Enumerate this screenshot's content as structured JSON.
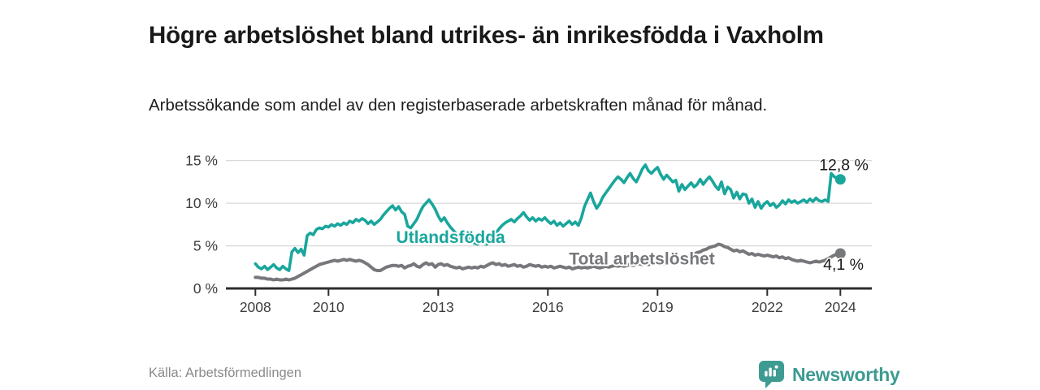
{
  "header": {
    "title": "Högre arbetslöshet bland utrikes- än inrikesfödda i Vaxholm",
    "subtitle": "Arbetssökande som andel av den registerbaserade arbetskraften månad för månad."
  },
  "footer": {
    "source": "Källa: Arbetsförmedlingen",
    "brand": "Newsworthy"
  },
  "colors": {
    "teal_series": "#19a69c",
    "gray_series": "#77787b",
    "grid": "#d9d9d9",
    "axis": "#2e2e2e",
    "axis_text": "#3c3c3c",
    "annotation_text": "#1a1a1a",
    "logo_teal": "#3d9b91",
    "source_text": "#8a8a8a"
  },
  "chart_data": {
    "type": "line",
    "title": "Högre arbetslöshet bland utrikes- än inrikesfödda i Vaxholm",
    "subtitle": "Arbetssökande som andel av den registerbaserade arbetskraften månad för månad.",
    "x_unit": "year-month, monthly from Jan 2008 to Jan 2024",
    "xlim": [
      2007.2,
      2024.9
    ],
    "ylim": [
      0,
      15.5
    ],
    "grid": "horizontal-only",
    "legend_position": "inline-labels-on-lines",
    "x_ticks": [
      {
        "year": 2008,
        "label": "2008"
      },
      {
        "year": 2010,
        "label": "2010"
      },
      {
        "year": 2013,
        "label": "2013"
      },
      {
        "year": 2016,
        "label": "2016"
      },
      {
        "year": 2019,
        "label": "2019"
      },
      {
        "year": 2022,
        "label": "2022"
      },
      {
        "year": 2024,
        "label": "2024"
      }
    ],
    "y_ticks": [
      {
        "value": 0,
        "label": "0 %"
      },
      {
        "value": 5,
        "label": "5 %"
      },
      {
        "value": 10,
        "label": "10 %"
      },
      {
        "value": 15,
        "label": "15 %"
      }
    ],
    "series": [
      {
        "id": "total",
        "name": "Total arbetslöshet",
        "color": "#77787b",
        "width": 4,
        "end_label": "4,1 %",
        "label_pos": {
          "year": 2016.58,
          "value": 2.82
        },
        "end_label_pos": {
          "year": 2023.53,
          "value": 2.18
        },
        "start": "2008-01",
        "values": [
          1.3,
          1.3,
          1.2,
          1.2,
          1.1,
          1.1,
          1.0,
          1.1,
          1.0,
          1.0,
          1.1,
          1.0,
          1.1,
          1.2,
          1.4,
          1.6,
          1.8,
          2.0,
          2.2,
          2.4,
          2.6,
          2.8,
          2.9,
          3.0,
          3.1,
          3.2,
          3.3,
          3.2,
          3.3,
          3.4,
          3.3,
          3.4,
          3.3,
          3.2,
          3.3,
          3.2,
          3.0,
          2.8,
          2.5,
          2.2,
          2.1,
          2.1,
          2.3,
          2.5,
          2.6,
          2.7,
          2.7,
          2.6,
          2.7,
          2.4,
          2.6,
          2.7,
          2.9,
          2.6,
          2.5,
          2.8,
          3.0,
          2.8,
          2.9,
          2.5,
          2.8,
          2.9,
          2.7,
          2.8,
          2.6,
          2.5,
          2.4,
          2.5,
          2.3,
          2.4,
          2.5,
          2.4,
          2.5,
          2.4,
          2.6,
          2.5,
          2.7,
          2.9,
          3.0,
          2.8,
          2.9,
          2.7,
          2.8,
          2.6,
          2.7,
          2.8,
          2.6,
          2.7,
          2.5,
          2.6,
          2.8,
          2.7,
          2.6,
          2.7,
          2.5,
          2.6,
          2.5,
          2.6,
          2.4,
          2.5,
          2.6,
          2.5,
          2.4,
          2.5,
          2.3,
          2.4,
          2.5,
          2.4,
          2.5,
          2.4,
          2.5,
          2.6,
          2.5,
          2.4,
          2.5,
          2.6,
          2.5,
          2.6,
          2.7,
          2.6,
          2.7,
          2.6,
          2.7,
          2.8,
          2.7,
          2.8,
          2.9,
          2.8,
          2.9,
          2.8,
          2.9,
          3.0,
          2.9,
          3.0,
          2.9,
          3.0,
          3.1,
          3.0,
          3.1,
          3.2,
          3.3,
          3.5,
          3.7,
          3.9,
          4.0,
          4.2,
          4.3,
          4.5,
          4.6,
          4.8,
          4.9,
          5.0,
          5.2,
          5.1,
          4.9,
          4.8,
          4.6,
          4.4,
          4.5,
          4.3,
          4.4,
          4.2,
          4.0,
          4.1,
          3.9,
          4.0,
          3.9,
          3.8,
          3.9,
          3.8,
          3.7,
          3.8,
          3.6,
          3.7,
          3.5,
          3.6,
          3.4,
          3.3,
          3.2,
          3.3,
          3.2,
          3.1,
          3.0,
          3.1,
          3.2,
          3.1,
          3.2,
          3.3,
          3.5,
          3.7,
          3.9,
          4.0,
          4.1
        ]
      },
      {
        "id": "utlandsfodda",
        "name": "Utlandsfödda",
        "color": "#19a69c",
        "width": 3.6,
        "end_label": "12,8 %",
        "label_pos": {
          "year": 2011.85,
          "value": 5.35
        },
        "end_label_pos": {
          "year": 2023.42,
          "value": 13.85
        },
        "start": "2008-01",
        "values": [
          2.9,
          2.5,
          2.3,
          2.6,
          2.2,
          2.5,
          2.8,
          2.4,
          2.2,
          2.6,
          2.3,
          2.1,
          4.3,
          4.7,
          4.2,
          4.6,
          3.9,
          6.2,
          6.5,
          6.3,
          6.9,
          7.1,
          7.0,
          7.3,
          7.2,
          7.5,
          7.3,
          7.6,
          7.4,
          7.7,
          7.5,
          7.9,
          7.7,
          8.1,
          7.9,
          8.2,
          8.0,
          7.6,
          7.9,
          7.5,
          7.8,
          8.1,
          8.6,
          9.0,
          9.4,
          9.7,
          9.2,
          9.6,
          9.0,
          8.7,
          7.3,
          7.1,
          7.6,
          8.1,
          8.9,
          9.6,
          10.0,
          10.4,
          9.9,
          9.3,
          8.5,
          7.9,
          8.3,
          7.7,
          7.2,
          6.8,
          6.4,
          6.1,
          5.8,
          5.6,
          5.9,
          5.5,
          5.3,
          5.2,
          5.5,
          5.3,
          5.2,
          5.6,
          6.0,
          6.5,
          7.0,
          7.4,
          7.7,
          7.9,
          8.1,
          7.8,
          8.2,
          8.5,
          8.9,
          8.4,
          8.0,
          8.3,
          7.9,
          8.2,
          8.0,
          8.3,
          7.9,
          7.6,
          7.9,
          7.4,
          7.7,
          7.3,
          7.6,
          7.9,
          7.5,
          7.8,
          7.4,
          8.3,
          9.6,
          10.4,
          11.2,
          10.2,
          9.4,
          9.9,
          10.7,
          11.2,
          11.7,
          12.2,
          12.7,
          13.1,
          12.8,
          12.4,
          13.0,
          13.5,
          12.9,
          12.5,
          13.2,
          14.0,
          14.5,
          13.8,
          13.5,
          13.9,
          14.2,
          13.4,
          12.8,
          13.3,
          12.9,
          12.5,
          12.7,
          11.4,
          12.2,
          11.6,
          12.0,
          12.4,
          11.9,
          12.2,
          12.8,
          12.2,
          12.7,
          13.1,
          12.6,
          12.0,
          11.6,
          12.5,
          11.1,
          11.9,
          11.6,
          10.6,
          11.3,
          10.5,
          11.1,
          11.0,
          10.0,
          10.5,
          9.5,
          10.2,
          9.4,
          9.9,
          10.2,
          9.7,
          10.0,
          9.5,
          9.8,
          10.3,
          9.9,
          10.4,
          10.1,
          10.3,
          10.0,
          10.2,
          10.4,
          10.1,
          10.5,
          10.2,
          10.6,
          10.3,
          10.2,
          10.4,
          10.2,
          13.5,
          13.1,
          12.9,
          12.8
        ]
      }
    ]
  }
}
